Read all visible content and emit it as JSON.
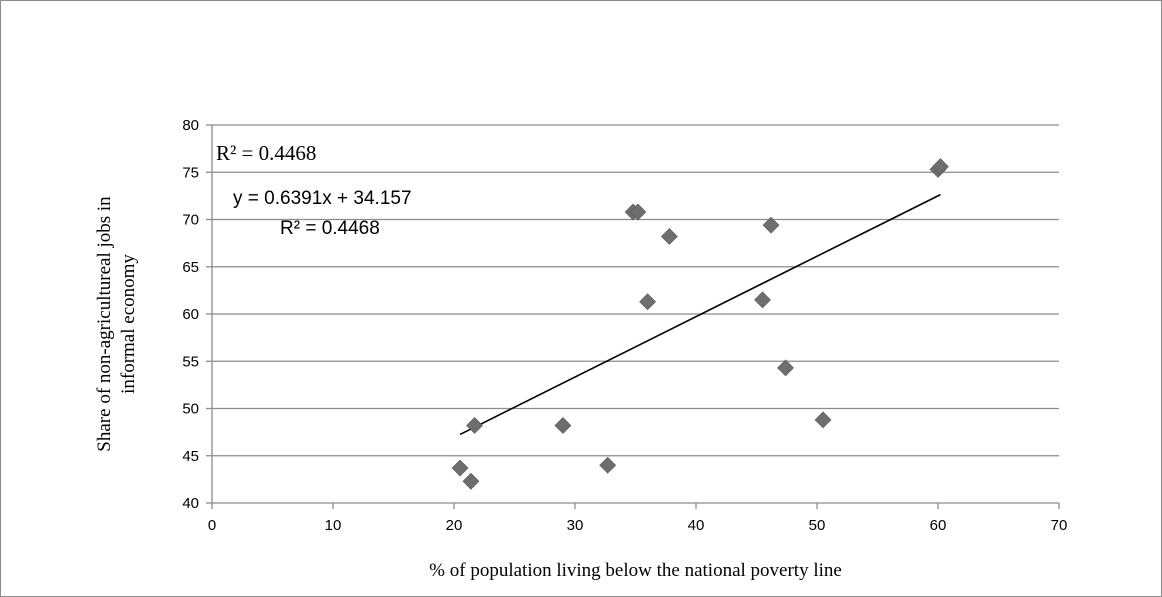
{
  "chart_data": {
    "type": "scatter",
    "xlabel": "% of population living below the national poverty line",
    "ylabel": "Share of non-agricultureal jobs in informal economy",
    "xlim": [
      0,
      70
    ],
    "ylim": [
      40,
      80
    ],
    "xticks": [
      0,
      10,
      20,
      30,
      40,
      50,
      60,
      70
    ],
    "yticks": [
      40,
      45,
      50,
      55,
      60,
      65,
      70,
      75,
      80
    ],
    "grid": "horizontal",
    "legend": "none",
    "points": {
      "x": [
        20.5,
        21.4,
        21.7,
        29.0,
        32.7,
        34.8,
        35.2,
        36.0,
        37.8,
        45.5,
        46.2,
        47.4,
        50.5,
        60.0,
        60.2
      ],
      "y": [
        43.7,
        42.3,
        48.2,
        48.2,
        44.0,
        70.8,
        70.8,
        61.3,
        68.2,
        61.5,
        69.4,
        54.3,
        48.8,
        75.3,
        75.6
      ]
    },
    "trendline": {
      "slope": 0.6391,
      "intercept": 34.157,
      "x_range": [
        20.5,
        60.2
      ]
    },
    "annotations": {
      "r2_top": "R² = 0.4468",
      "equation": "y = 0.6391x + 34.157",
      "r2_eq": "R² = 0.4468"
    },
    "colors": {
      "marker": "#6e6e6e",
      "grid": "#8c8c8c",
      "trendline": "#000000",
      "text": "#000000"
    }
  }
}
